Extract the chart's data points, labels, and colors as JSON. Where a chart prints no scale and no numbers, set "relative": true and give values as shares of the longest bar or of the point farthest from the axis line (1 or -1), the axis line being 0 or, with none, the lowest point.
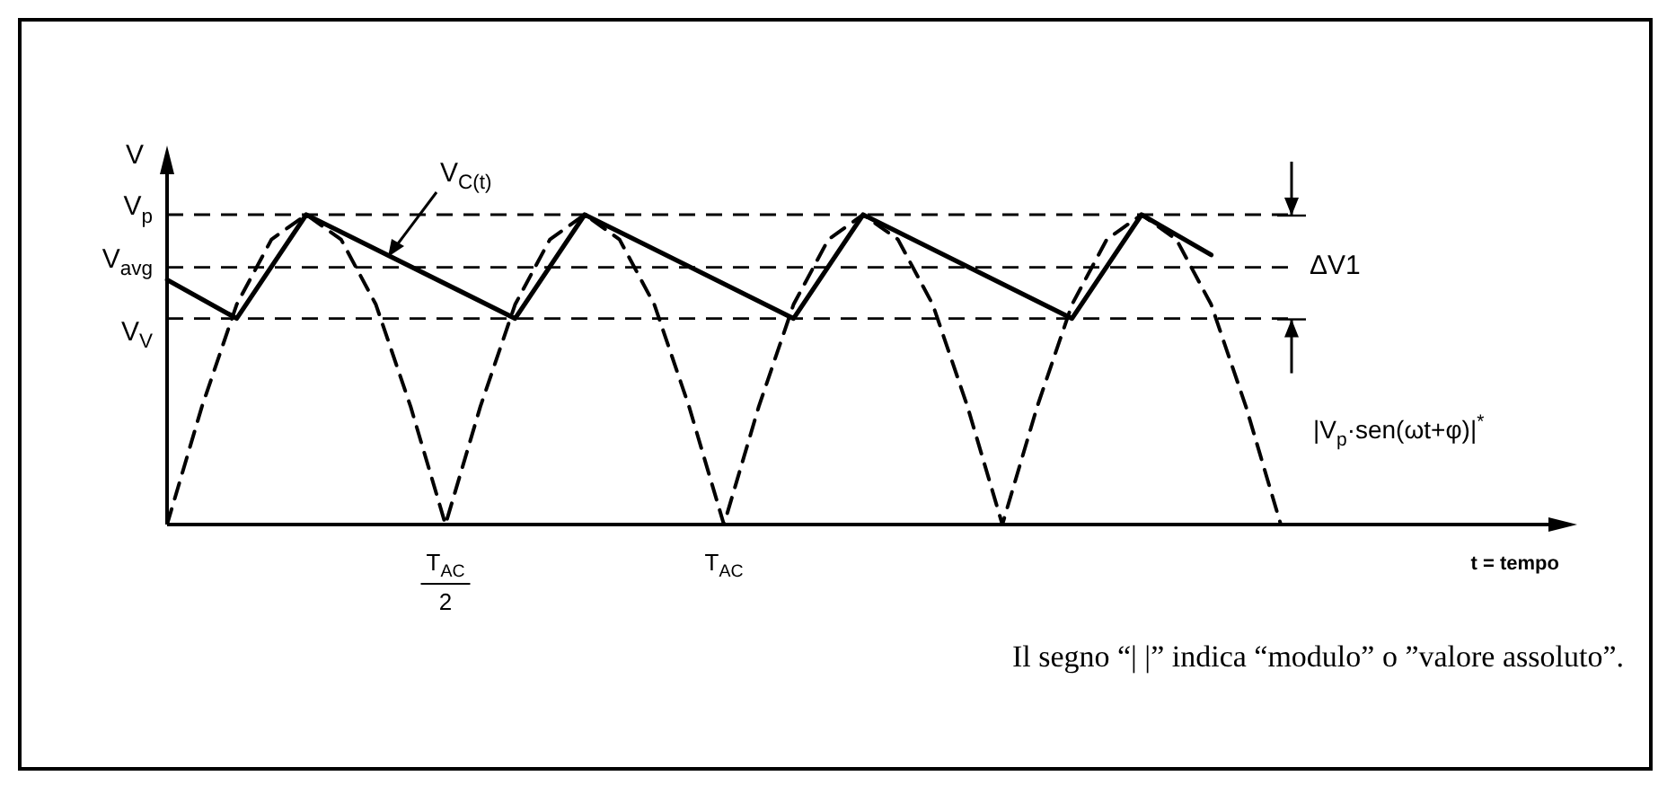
{
  "chart_data": {
    "type": "line",
    "xlabel": "t = tempo",
    "ylabel": "V",
    "relative": true,
    "categories": [
      null,
      null,
      null,
      null,
      null,
      null,
      null,
      null,
      "T$_{AC}$\n2",
      null,
      null,
      null,
      null,
      null,
      null,
      null,
      "T$_{AC}$",
      null,
      null,
      null,
      null,
      null,
      null,
      null,
      null,
      null,
      null,
      null,
      null,
      null,
      null,
      null,
      null,
      null,
      null,
      null,
      null,
      null,
      null,
      null,
      null
    ],
    "legend": false,
    "marker": "none",
    "series": [
      {
        "name": "V$_{C(t)}$",
        "color": "#000000",
        "line_style": "solid",
        "values": [
          0.79,
          null,
          0.665,
          null,
          1,
          null,
          null,
          null,
          null,
          null,
          0.665,
          null,
          1,
          null,
          null,
          null,
          null,
          null,
          0.665,
          null,
          1,
          null,
          null,
          null,
          null,
          null,
          0.665,
          null,
          1,
          null,
          0.87,
          null,
          null,
          null,
          null,
          null,
          null,
          null,
          null,
          null,
          null
        ]
      },
      {
        "name": "|V$_{p}$·sen(ωt+φ)|$^{*}$",
        "color": "#000000",
        "line_style": "dashed",
        "values": [
          0,
          0.38,
          0.71,
          0.92,
          1,
          0.92,
          0.71,
          0.38,
          0,
          0.38,
          0.71,
          0.92,
          1,
          0.92,
          0.71,
          0.38,
          0,
          0.38,
          0.71,
          0.92,
          1,
          0.92,
          0.71,
          0.38,
          0,
          0.38,
          0.71,
          0.92,
          1,
          0.92,
          0.71,
          0.38,
          0,
          null,
          null,
          null,
          null,
          null,
          null,
          null,
          null
        ]
      }
    ],
    "ref_lines": [
      {
        "axis": "y",
        "value": 1,
        "label": "V$_{p}$",
        "line_style": "dashed"
      },
      {
        "axis": "y",
        "value": 0.83,
        "label": "V$_{avg}$",
        "line_style": "dashed"
      },
      {
        "axis": "y",
        "value": 0.665,
        "label": "V$_{V}$",
        "line_style": "dashed"
      }
    ],
    "annotations": [
      "ΔV1",
      "Il segno “|  |” indica “modulo” o ”valore assoluto”."
    ]
  }
}
